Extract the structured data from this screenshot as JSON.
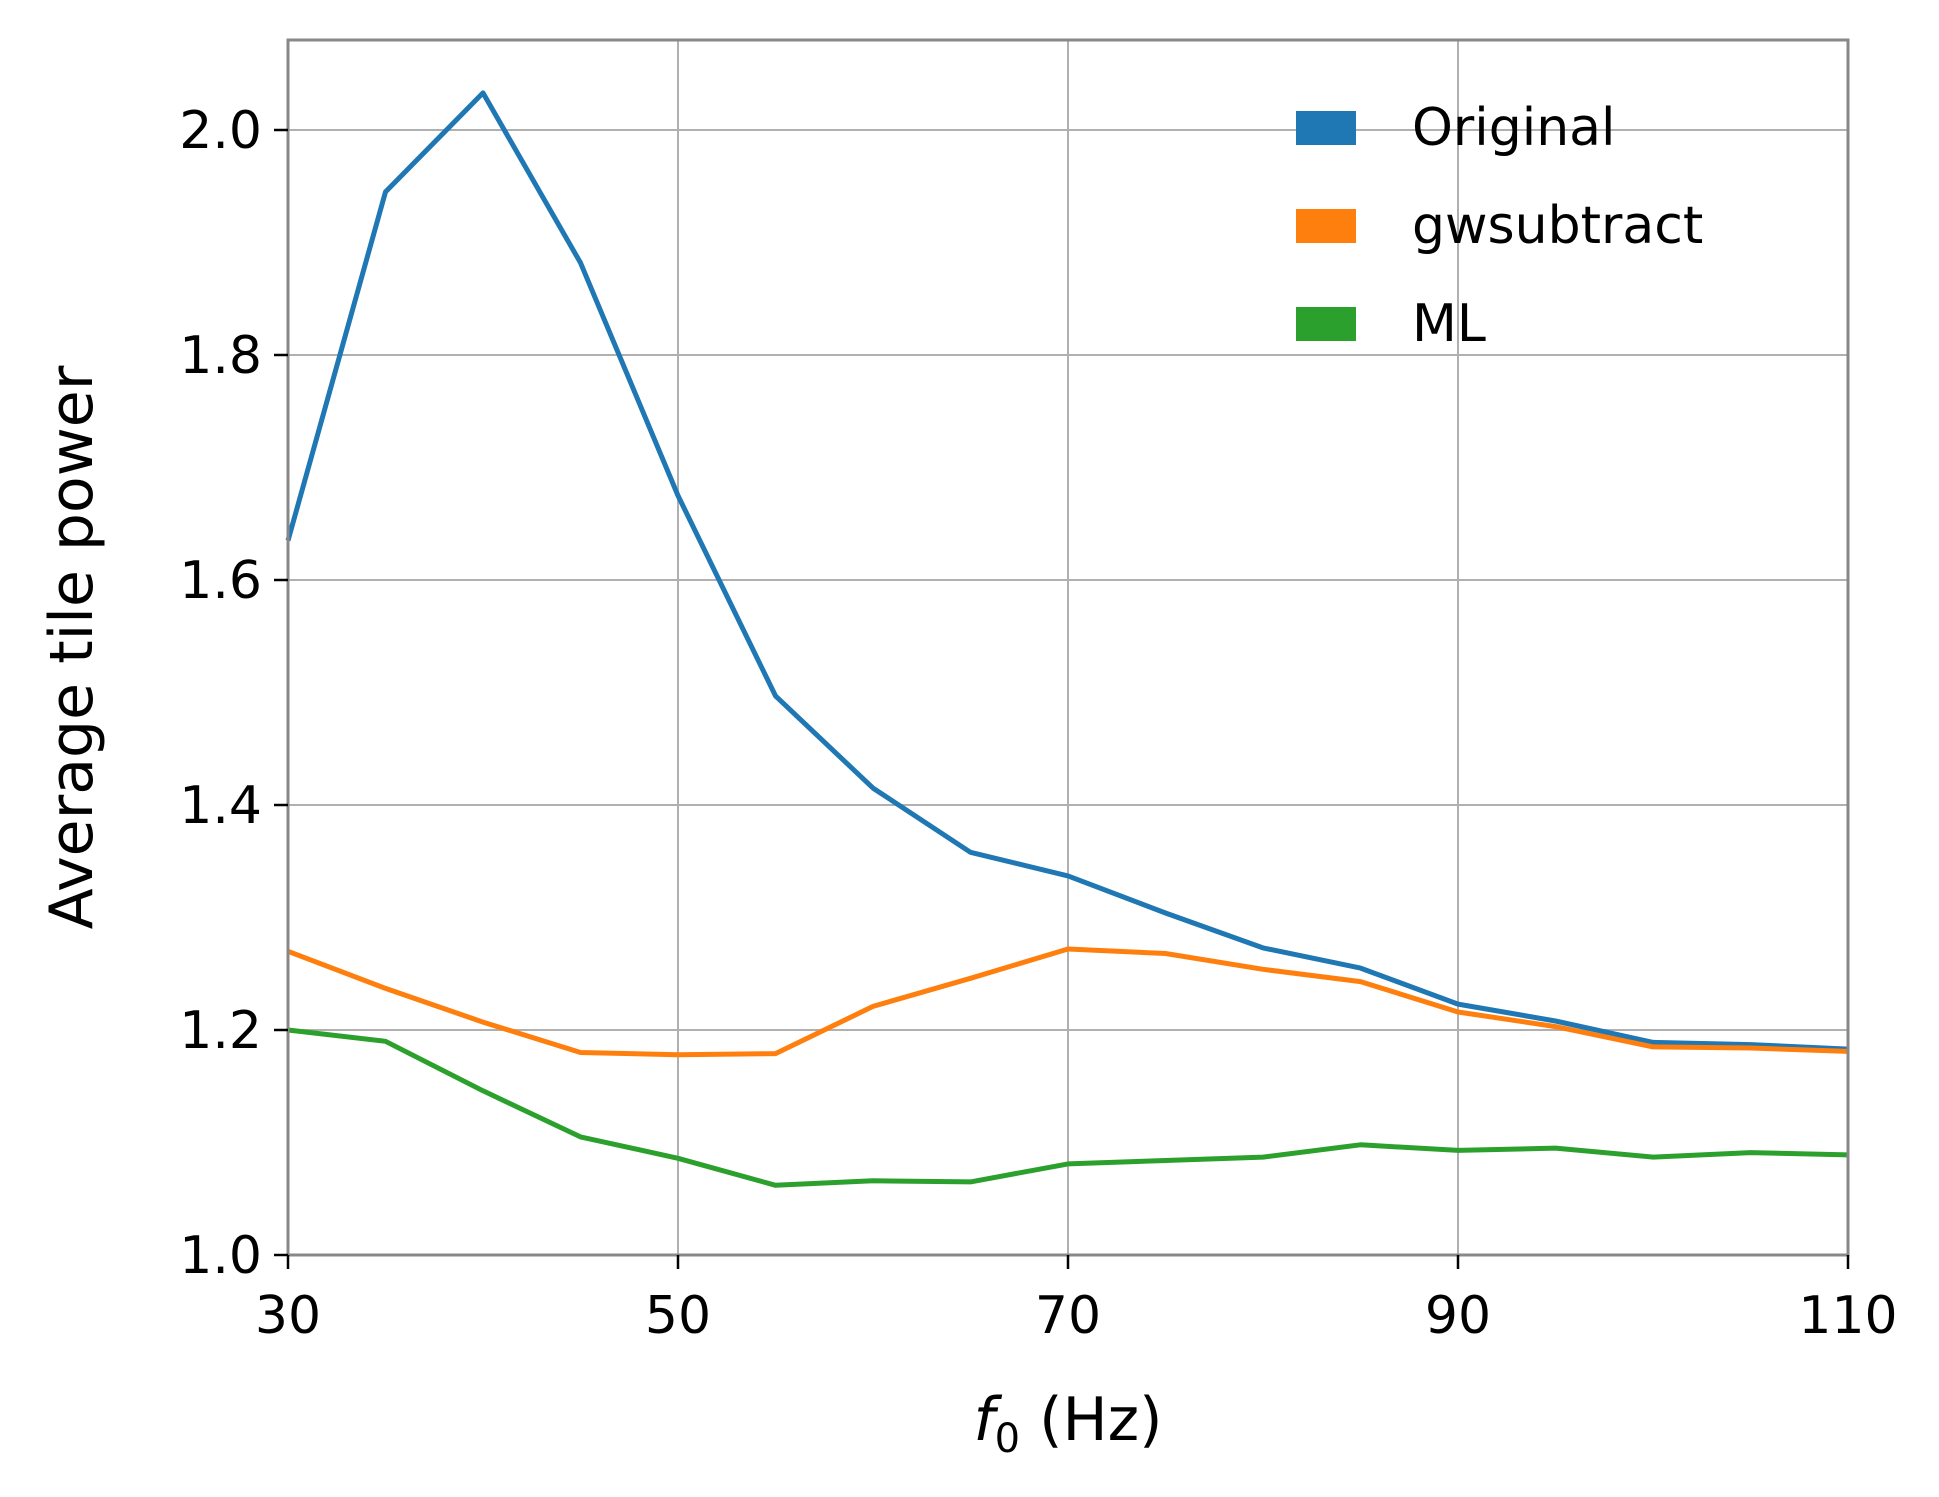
{
  "chart_data": {
    "type": "line",
    "xlabel": "f0 (Hz)",
    "xlabel_main": "f",
    "xlabel_sub": "0",
    "xlabel_rest": " (Hz)",
    "ylabel": "Average tile power",
    "xlim": [
      30,
      110
    ],
    "ylim": [
      1.0,
      2.08
    ],
    "xticks": [
      "30",
      "50",
      "70",
      "90",
      "110"
    ],
    "yticks": [
      "1.0",
      "1.2",
      "1.4",
      "1.6",
      "1.8",
      "2.0"
    ],
    "grid": true,
    "legend_position": "top-right",
    "x": [
      30,
      35,
      40,
      45,
      50,
      55,
      60,
      65,
      70,
      75,
      80,
      85,
      90,
      95,
      100,
      105,
      110
    ],
    "series": [
      {
        "name": "Original",
        "color": "#1f77b4",
        "values": [
          1.635,
          1.945,
          2.033,
          1.882,
          1.675,
          1.497,
          1.415,
          1.358,
          1.337,
          1.304,
          1.273,
          1.255,
          1.223,
          1.208,
          1.189,
          1.187,
          1.183
        ]
      },
      {
        "name": "gwsubtract",
        "color": "#ff7f0e",
        "values": [
          1.27,
          1.237,
          1.207,
          1.18,
          1.178,
          1.179,
          1.221,
          1.246,
          1.272,
          1.268,
          1.254,
          1.243,
          1.216,
          1.203,
          1.185,
          1.184,
          1.181
        ]
      },
      {
        "name": "ML",
        "color": "#2ca02c",
        "values": [
          1.2,
          1.19,
          1.146,
          1.105,
          1.086,
          1.062,
          1.066,
          1.065,
          1.081,
          1.084,
          1.087,
          1.098,
          1.093,
          1.095,
          1.087,
          1.091,
          1.089
        ]
      }
    ]
  }
}
